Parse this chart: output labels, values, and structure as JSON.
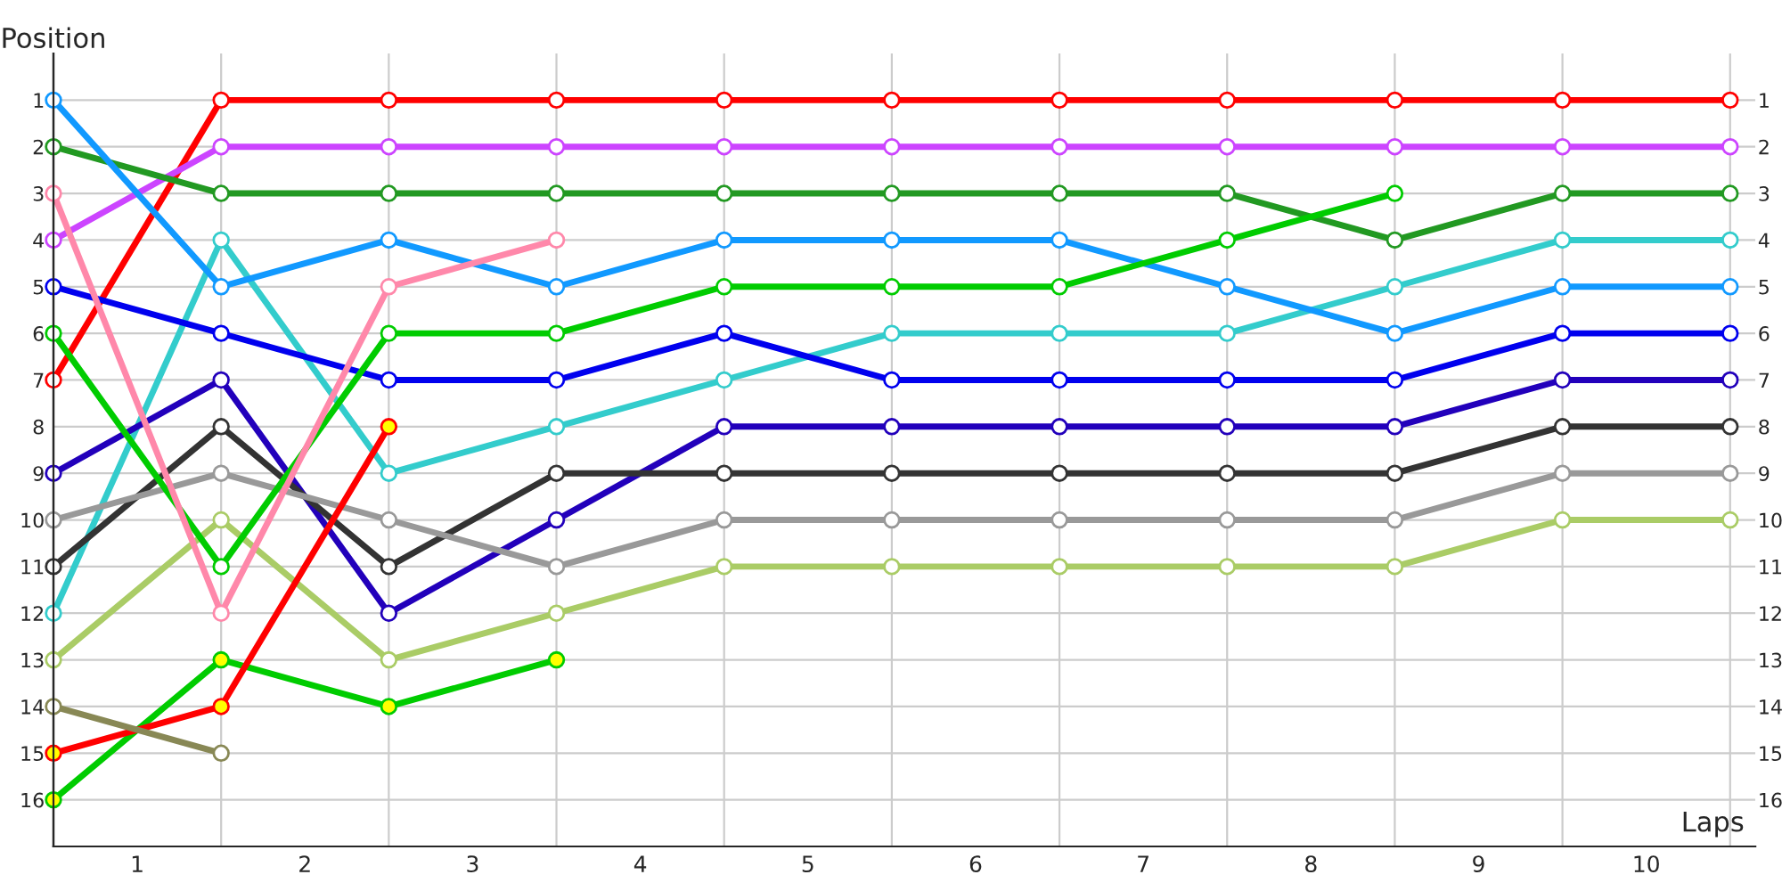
{
  "chart_data": {
    "type": "line",
    "xlabel": "Laps",
    "ylabel": "Position",
    "x": [
      0,
      1,
      2,
      3,
      4,
      5,
      6,
      7,
      8,
      9,
      10
    ],
    "xlim": [
      0,
      10.15
    ],
    "xticks": [
      {
        "value": 0.5,
        "label": "1"
      },
      {
        "value": 1.5,
        "label": "2"
      },
      {
        "value": 2.5,
        "label": "3"
      },
      {
        "value": 3.5,
        "label": "4"
      },
      {
        "value": 4.5,
        "label": "5"
      },
      {
        "value": 5.5,
        "label": "6"
      },
      {
        "value": 6.5,
        "label": "7"
      },
      {
        "value": 7.5,
        "label": "8"
      },
      {
        "value": 8.5,
        "label": "9"
      },
      {
        "value": 9.5,
        "label": "10"
      },
      {
        "value": 1,
        "label": null
      },
      {
        "value": 2,
        "label": null
      },
      {
        "value": 3,
        "label": null
      },
      {
        "value": 4,
        "label": null
      },
      {
        "value": 5,
        "label": null
      },
      {
        "value": 6,
        "label": null
      },
      {
        "value": 7,
        "label": null
      },
      {
        "value": 8,
        "label": null
      },
      {
        "value": 9,
        "label": null
      },
      {
        "value": 10,
        "label": null
      }
    ],
    "ylim": [
      17,
      0
    ],
    "yticks": [
      1,
      2,
      3,
      4,
      5,
      6,
      7,
      8,
      9,
      10,
      11,
      12,
      13,
      14,
      15,
      16
    ],
    "y2lim": [
      17,
      0
    ],
    "y2ticks": [
      1,
      2,
      3,
      4,
      5,
      6,
      7,
      8,
      9,
      10,
      11,
      12,
      13,
      14,
      15,
      16
    ],
    "grid": true,
    "marker": "circle",
    "line_style": "solid",
    "series": [
      {
        "color": "#ff0000",
        "values": [
          7,
          1,
          1,
          1,
          1,
          1,
          1,
          1,
          1,
          1,
          1
        ]
      },
      {
        "color": "#cc44ff",
        "values": [
          4,
          2,
          2,
          2,
          2,
          2,
          2,
          2,
          2,
          2,
          2
        ]
      },
      {
        "color": "#229922",
        "values": [
          2,
          3,
          3,
          3,
          3,
          3,
          3,
          3,
          4,
          3,
          3
        ]
      },
      {
        "color": "#33cccc",
        "values": [
          12,
          4,
          9,
          8,
          7,
          6,
          6,
          6,
          5,
          4,
          4
        ]
      },
      {
        "color": "#1199ff",
        "values": [
          1,
          5,
          4,
          5,
          4,
          4,
          4,
          5,
          6,
          5,
          5
        ]
      },
      {
        "color": "#0000ee",
        "values": [
          5,
          6,
          7,
          7,
          6,
          7,
          7,
          7,
          7,
          6,
          6
        ]
      },
      {
        "color": "#2200bb",
        "values": [
          9,
          7,
          12,
          10,
          8,
          8,
          8,
          8,
          8,
          7,
          7
        ]
      },
      {
        "color": "#333333",
        "values": [
          11,
          8,
          11,
          9,
          9,
          9,
          9,
          9,
          9,
          8,
          8
        ]
      },
      {
        "color": "#999999",
        "values": [
          10,
          9,
          10,
          11,
          10,
          10,
          10,
          10,
          10,
          9,
          9
        ]
      },
      {
        "color": "#aacc66",
        "values": [
          13,
          10,
          13,
          12,
          11,
          11,
          11,
          11,
          11,
          10,
          10
        ]
      },
      {
        "color": "#00cc00",
        "values": [
          6,
          11,
          6,
          6,
          5,
          5,
          5,
          4,
          3,
          null,
          null
        ]
      },
      {
        "color": "#ff88aa",
        "values": [
          3,
          12,
          5,
          4,
          null,
          null,
          null,
          null,
          null,
          null,
          null
        ]
      },
      {
        "color": "#00cc00",
        "values": [
          16,
          13,
          14,
          13,
          null,
          null,
          null,
          null,
          null,
          null,
          null
        ],
        "colors": [
          "#ffff00",
          "#ffff00",
          "#ffff00",
          "#ffff00",
          null,
          null,
          null,
          null,
          null,
          null,
          null
        ]
      },
      {
        "color": "#ff0000",
        "values": [
          15,
          14,
          8,
          null,
          null,
          null,
          null,
          null,
          null,
          null,
          null
        ],
        "colors": [
          "#ffff00",
          "#ffff00",
          "#ffff00",
          null,
          null,
          null,
          null,
          null,
          null,
          null,
          null
        ]
      },
      {
        "color": "#888855",
        "values": [
          14,
          15,
          null,
          null,
          null,
          null,
          null,
          null,
          null,
          null,
          null
        ]
      }
    ]
  }
}
